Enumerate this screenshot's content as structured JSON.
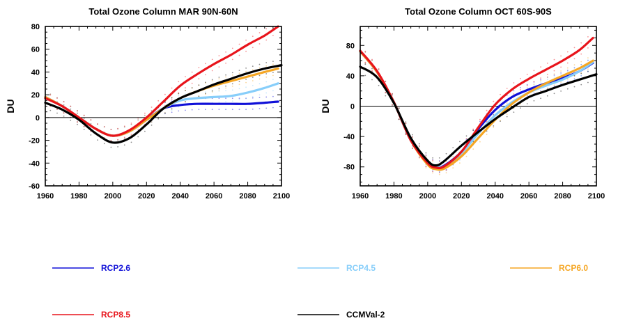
{
  "chart_data": [
    {
      "type": "line",
      "title": "Total Ozone Column MAR 90N-60N",
      "ylabel": "DU",
      "xlim": [
        1960,
        2100
      ],
      "ylim": [
        -60,
        80
      ],
      "xticks": [
        1960,
        1980,
        2000,
        2020,
        2040,
        2060,
        2080,
        2100
      ],
      "yticks": [
        -60,
        -40,
        -20,
        0,
        20,
        40,
        60,
        80
      ],
      "zero_line": true,
      "series": [
        {
          "name": "RCP2.6",
          "color": "#1010d8",
          "x": [
            1960,
            1970,
            1980,
            1990,
            2000,
            2010,
            2020,
            2030,
            2040,
            2050,
            2060,
            2070,
            2080,
            2090,
            2098
          ],
          "values": [
            18,
            10,
            0,
            -10,
            -16,
            -12,
            -2,
            8,
            11,
            12,
            12,
            12,
            12,
            13,
            14
          ]
        },
        {
          "name": "RCP4.5",
          "color": "#87cefa",
          "x": [
            1960,
            1970,
            1980,
            1990,
            2000,
            2010,
            2020,
            2030,
            2040,
            2050,
            2060,
            2070,
            2080,
            2090,
            2098
          ],
          "values": [
            18,
            10,
            0,
            -10,
            -16,
            -12,
            -2,
            8,
            15,
            17,
            18,
            19,
            22,
            26,
            30
          ]
        },
        {
          "name": "RCP6.0",
          "color": "#f5a623",
          "x": [
            1960,
            1970,
            1980,
            1990,
            2000,
            2010,
            2020,
            2030,
            2040,
            2050,
            2060,
            2070,
            2080,
            2090,
            2098
          ],
          "values": [
            18,
            10,
            0,
            -10,
            -16,
            -12,
            -2,
            8,
            17,
            23,
            28,
            32,
            36,
            40,
            43
          ]
        },
        {
          "name": "RCP8.5",
          "color": "#e8141b",
          "x": [
            1960,
            1970,
            1980,
            1990,
            2000,
            2010,
            2020,
            2030,
            2040,
            2050,
            2060,
            2070,
            2080,
            2090,
            2098
          ],
          "values": [
            17,
            10,
            0,
            -10,
            -16,
            -11,
            0,
            14,
            28,
            38,
            47,
            55,
            64,
            72,
            80
          ]
        },
        {
          "name": "CCMVal-2",
          "color": "#000000",
          "x": [
            1960,
            1970,
            1980,
            1990,
            2000,
            2010,
            2020,
            2030,
            2040,
            2050,
            2060,
            2070,
            2080,
            2090,
            2100
          ],
          "values": [
            13,
            7,
            -2,
            -14,
            -22,
            -18,
            -6,
            8,
            17,
            23,
            29,
            34,
            39,
            43,
            46
          ]
        }
      ]
    },
    {
      "type": "line",
      "title": "Total Ozone Column OCT 60S-90S",
      "ylabel": "DU",
      "xlim": [
        1960,
        2100
      ],
      "ylim": [
        -105,
        105
      ],
      "xticks": [
        1960,
        1980,
        2000,
        2020,
        2040,
        2060,
        2080,
        2100
      ],
      "yticks": [
        -80,
        -40,
        0,
        40,
        80
      ],
      "zero_line": true,
      "series": [
        {
          "name": "RCP2.6",
          "color": "#1010d8",
          "x": [
            1960,
            1970,
            1980,
            1990,
            2000,
            2005,
            2010,
            2020,
            2030,
            2040,
            2050,
            2060,
            2070,
            2080,
            2090,
            2098
          ],
          "values": [
            72,
            45,
            5,
            -45,
            -75,
            -80,
            -78,
            -60,
            -30,
            -5,
            12,
            22,
            30,
            37,
            46,
            57
          ]
        },
        {
          "name": "RCP4.5",
          "color": "#87cefa",
          "x": [
            1960,
            1970,
            1980,
            1990,
            2000,
            2005,
            2010,
            2020,
            2030,
            2040,
            2050,
            2060,
            2070,
            2080,
            2090,
            2098
          ],
          "values": [
            72,
            45,
            5,
            -45,
            -75,
            -80,
            -79,
            -62,
            -36,
            -12,
            5,
            18,
            27,
            35,
            46,
            58
          ]
        },
        {
          "name": "RCP6.0",
          "color": "#f5a623",
          "x": [
            1960,
            1970,
            1980,
            1990,
            2000,
            2005,
            2010,
            2020,
            2030,
            2040,
            2050,
            2060,
            2070,
            2080,
            2090,
            2098
          ],
          "values": [
            72,
            45,
            5,
            -45,
            -77,
            -83,
            -82,
            -66,
            -42,
            -18,
            3,
            18,
            30,
            40,
            50,
            60
          ]
        },
        {
          "name": "RCP8.5",
          "color": "#e8141b",
          "x": [
            1960,
            1970,
            1980,
            1990,
            2000,
            2005,
            2010,
            2020,
            2030,
            2040,
            2050,
            2060,
            2070,
            2080,
            2090,
            2098
          ],
          "values": [
            73,
            46,
            5,
            -45,
            -75,
            -81,
            -79,
            -60,
            -28,
            2,
            22,
            36,
            48,
            60,
            74,
            90
          ]
        },
        {
          "name": "CCMVal-2",
          "color": "#000000",
          "x": [
            1960,
            1970,
            1980,
            1990,
            2000,
            2005,
            2010,
            2020,
            2030,
            2040,
            2050,
            2060,
            2070,
            2080,
            2090,
            2100
          ],
          "values": [
            52,
            38,
            4,
            -42,
            -72,
            -78,
            -72,
            -52,
            -34,
            -17,
            -2,
            12,
            20,
            28,
            35,
            42
          ]
        }
      ]
    }
  ],
  "legend": [
    {
      "label": "RCP2.6",
      "color": "#1010d8"
    },
    {
      "label": "RCP4.5",
      "color": "#87cefa"
    },
    {
      "label": "RCP6.0",
      "color": "#f5a623"
    },
    {
      "label": "RCP8.5",
      "color": "#e8141b"
    },
    {
      "label": "CCMVal-2",
      "color": "#000000"
    }
  ]
}
